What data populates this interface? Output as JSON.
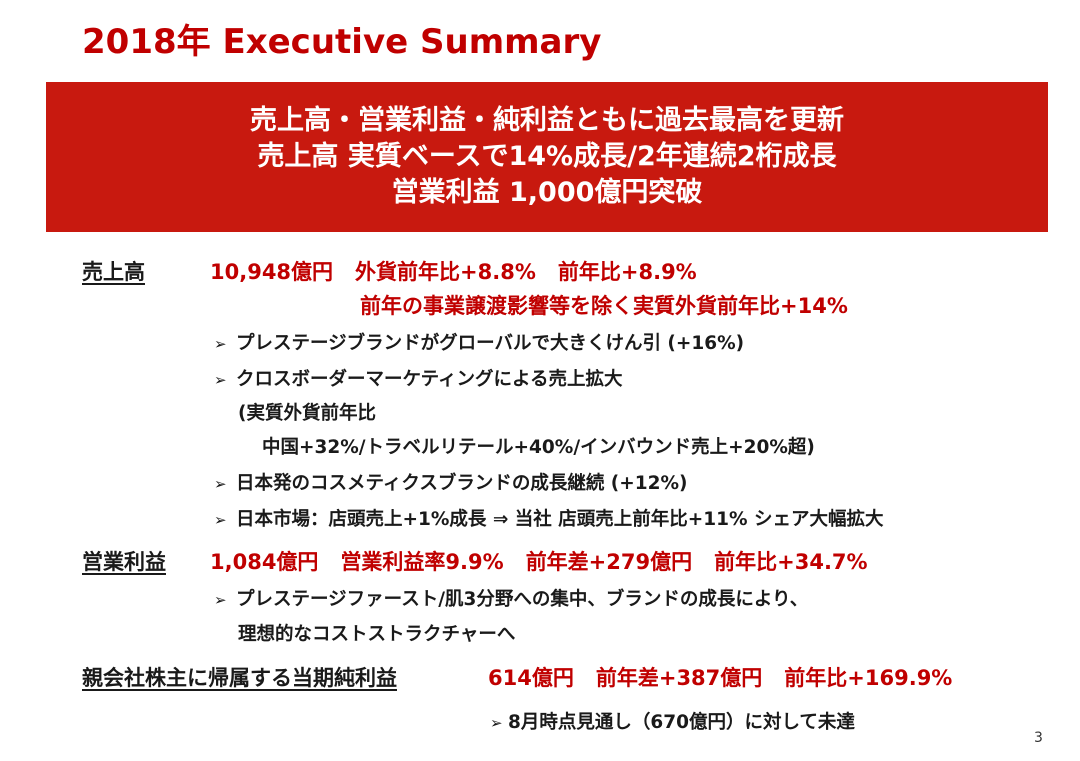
{
  "title": "2018年 Executive Summary",
  "banner": {
    "line1": "売上高・営業利益・純利益ともに過去最高を更新",
    "line2": "売上高 実質ベースで14%成長/2年連続2桁成長",
    "line3": "営業利益 1,000億円突破"
  },
  "sales": {
    "label": "売上高",
    "amount": "10,948億円",
    "fx_yoy": "外貨前年比+8.8%",
    "yoy": "前年比+8.9%",
    "real_fx_yoy": "前年の事業譲渡影響等を除く実質外貨前年比+14%",
    "bullets": [
      "プレステージブランドがグローバルで大きくけん引 (+16%)",
      "クロスボーダーマーケティングによる売上拡大",
      "(実質外貨前年比",
      "中国+32%/トラベルリテール+40%/インバウンド売上+20%超)",
      "日本発のコスメティクスブランドの成長継続 (+12%)",
      "日本市場：店頭売上+1%成長 ⇒ 当社 店頭売上前年比+11% シェア大幅拡大"
    ]
  },
  "operating_profit": {
    "label": "営業利益",
    "amount": "1,084億円",
    "margin": "営業利益率9.9%",
    "diff": "前年差+279億円",
    "yoy": "前年比+34.7%",
    "bullets": [
      "プレステージファースト/肌3分野への集中、ブランドの成長により、",
      "理想的なコストストラクチャーへ"
    ]
  },
  "net_income": {
    "label": "親会社株主に帰属する当期純利益",
    "amount": "614億円",
    "diff": "前年差+387億円",
    "yoy": "前年比+169.9%",
    "note": "8月時点見通し（670億円）に対して未達"
  },
  "arrow_glyph": "➢",
  "page_number": "3"
}
